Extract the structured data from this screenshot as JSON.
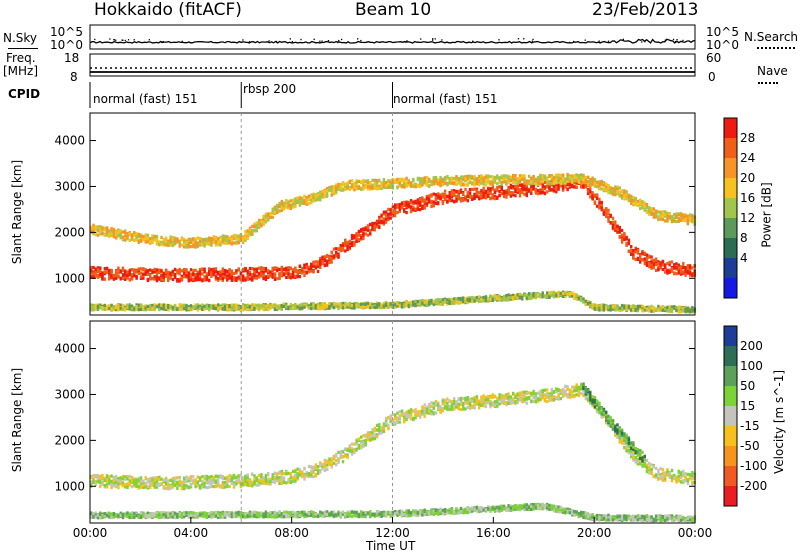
{
  "header": {
    "radar": "Hokkaido (fitACF)",
    "beam": "Beam 10",
    "date": "23/Feb/2013"
  },
  "nsky_panel": {
    "left_label": "N.Sky",
    "right_label": "N.Search",
    "left_ticks": [
      "10^5",
      "10^0"
    ],
    "right_ticks": [
      "10^5",
      "10^0"
    ]
  },
  "freq_panel": {
    "left_label_1": "Freq.",
    "left_label_2": "[MHz]",
    "right_label": "Nave",
    "left_ticks": [
      "18",
      "8"
    ],
    "right_ticks": [
      "60",
      "0"
    ]
  },
  "cpid_panel": {
    "label": "CPID",
    "modes": [
      {
        "name": "normal (fast) 151",
        "start_hour": 0,
        "end_hour": 6
      },
      {
        "name": "rbsp 200",
        "start_hour": 6,
        "end_hour": 12
      },
      {
        "name": "normal (fast) 151",
        "start_hour": 12,
        "end_hour": 24
      }
    ]
  },
  "x_axis": {
    "label": "Time UT",
    "ticks": [
      "00:00",
      "04:00",
      "08:00",
      "12:00",
      "16:00",
      "20:00",
      "00:00"
    ]
  },
  "chart_data": [
    {
      "type": "heatmap",
      "ylabel": "Slant Range [km]",
      "yticks": [
        "1000",
        "2000",
        "3000",
        "4000"
      ],
      "xlim_hours": [
        0,
        24
      ],
      "ylim": [
        200,
        4600
      ],
      "colorbar": {
        "label": "Power [dB]",
        "ticks": [
          "28",
          "24",
          "20",
          "16",
          "12",
          "8",
          "4"
        ],
        "colors": [
          "#ee1b10",
          "#f15e16",
          "#f79426",
          "#f6c21f",
          "#a0c64d",
          "#5b9a5a",
          "#2b6c55",
          "#1d3d98",
          "#1618e6"
        ]
      },
      "echo_bands": [
        {
          "name": "near-range ionospheric scatter",
          "level": "28",
          "points": [
            [
              0,
              1150
            ],
            [
              3,
              1100
            ],
            [
              6,
              1120
            ],
            [
              8,
              1150
            ],
            [
              9,
              1300
            ],
            [
              10,
              1700
            ],
            [
              11,
              2100
            ],
            [
              12,
              2500
            ],
            [
              14,
              2800
            ],
            [
              16,
              2900
            ],
            [
              18,
              3000
            ],
            [
              19.5,
              3150
            ],
            [
              20.5,
              2400
            ],
            [
              21.5,
              1600
            ],
            [
              22.5,
              1300
            ],
            [
              24,
              1200
            ]
          ]
        },
        {
          "name": "far-range scatter",
          "level": "16",
          "points": [
            [
              0,
              2100
            ],
            [
              2,
              1900
            ],
            [
              4,
              1800
            ],
            [
              6,
              1900
            ],
            [
              7.5,
              2600
            ],
            [
              9,
              2800
            ],
            [
              10,
              3050
            ],
            [
              14,
              3150
            ],
            [
              19.5,
              3200
            ],
            [
              21,
              2900
            ],
            [
              22.5,
              2400
            ],
            [
              24,
              2300
            ]
          ]
        },
        {
          "name": "ground scatter near range",
          "level": "12",
          "points": [
            [
              0,
              400
            ],
            [
              6,
              400
            ],
            [
              12,
              450
            ],
            [
              16,
              600
            ],
            [
              19,
              700
            ],
            [
              20,
              400
            ],
            [
              24,
              350
            ]
          ]
        }
      ]
    },
    {
      "type": "heatmap",
      "ylabel": "Slant Range [km]",
      "yticks": [
        "1000",
        "2000",
        "3000",
        "4000"
      ],
      "xlim_hours": [
        0,
        24
      ],
      "ylim": [
        200,
        4600
      ],
      "colorbar": {
        "label": "Velocity [m s^-1]",
        "ticks": [
          "200",
          "100",
          "50",
          "15",
          "-15",
          "-50",
          "-100",
          "-200"
        ],
        "colors": [
          "#1d3d98",
          "#2e6e55",
          "#5ca15a",
          "#7cd338",
          "#c5c4bc",
          "#f7c01f",
          "#f7941d",
          "#f15a22",
          "#ec1c24"
        ]
      },
      "echo_bands": [
        {
          "name": "low velocity scatter",
          "level": "-15",
          "points": [
            [
              0,
              1150
            ],
            [
              3,
              1100
            ],
            [
              6,
              1150
            ],
            [
              8,
              1250
            ],
            [
              9,
              1400
            ],
            [
              10,
              1700
            ],
            [
              11,
              2100
            ],
            [
              12,
              2500
            ],
            [
              14,
              2800
            ],
            [
              16,
              2900
            ],
            [
              18,
              3000
            ],
            [
              19.5,
              3150
            ],
            [
              20.5,
              2500
            ],
            [
              21.5,
              1700
            ],
            [
              22.5,
              1300
            ],
            [
              24,
              1200
            ]
          ]
        },
        {
          "name": "positive velocity streak",
          "level": "50",
          "points": [
            [
              19.5,
              3200
            ],
            [
              20.5,
              2500
            ],
            [
              21.5,
              1900
            ],
            [
              22,
              1600
            ]
          ]
        },
        {
          "name": "near range",
          "level": "15",
          "points": [
            [
              0,
              400
            ],
            [
              12,
              430
            ],
            [
              18,
              600
            ],
            [
              20,
              350
            ],
            [
              24,
              330
            ]
          ]
        }
      ]
    }
  ]
}
